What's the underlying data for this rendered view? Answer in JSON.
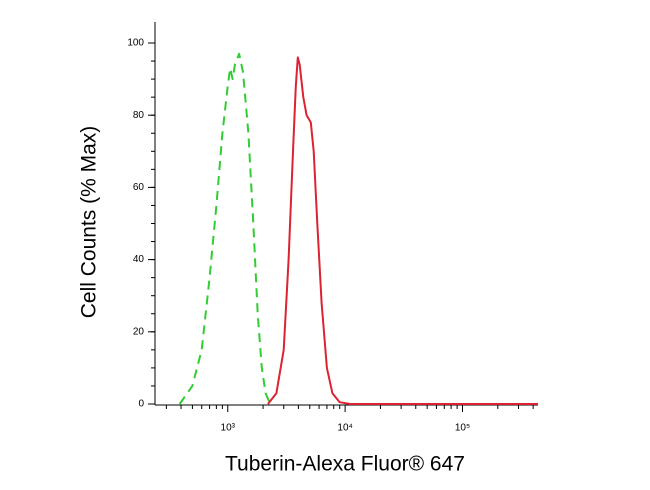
{
  "chart_data": {
    "type": "line",
    "xlabel": "Tuberin-Alexa Fluor® 647",
    "ylabel": "Cell Counts (% Max)",
    "xscale": "log",
    "xlim": [
      240,
      440000
    ],
    "ylim": [
      0,
      100
    ],
    "xticks": [
      {
        "value": 1000,
        "label": "10³"
      },
      {
        "value": 10000,
        "label": "10⁴"
      },
      {
        "value": 100000,
        "label": "10⁵"
      }
    ],
    "yticks": [
      0,
      20,
      40,
      60,
      80,
      100
    ],
    "series": [
      {
        "color": "#33cc33",
        "dash": true,
        "x": [
          390,
          500,
          600,
          700,
          800,
          900,
          1000,
          1050,
          1100,
          1150,
          1250,
          1350,
          1500,
          1650,
          1800,
          1950,
          2100,
          2300
        ],
        "values": [
          0,
          5,
          15,
          35,
          55,
          75,
          88,
          93,
          90,
          94,
          97,
          92,
          75,
          50,
          25,
          10,
          3,
          0
        ]
      },
      {
        "color": "#dd2233",
        "dash": false,
        "x": [
          2200,
          2600,
          3000,
          3300,
          3600,
          3800,
          3950,
          4100,
          4400,
          4700,
          5100,
          5400,
          5800,
          6300,
          7000,
          7800,
          9000,
          11000,
          440000
        ],
        "values": [
          0,
          3,
          15,
          40,
          70,
          88,
          96,
          94,
          85,
          80,
          78,
          70,
          50,
          28,
          10,
          3,
          0.5,
          0,
          0
        ]
      }
    ]
  }
}
